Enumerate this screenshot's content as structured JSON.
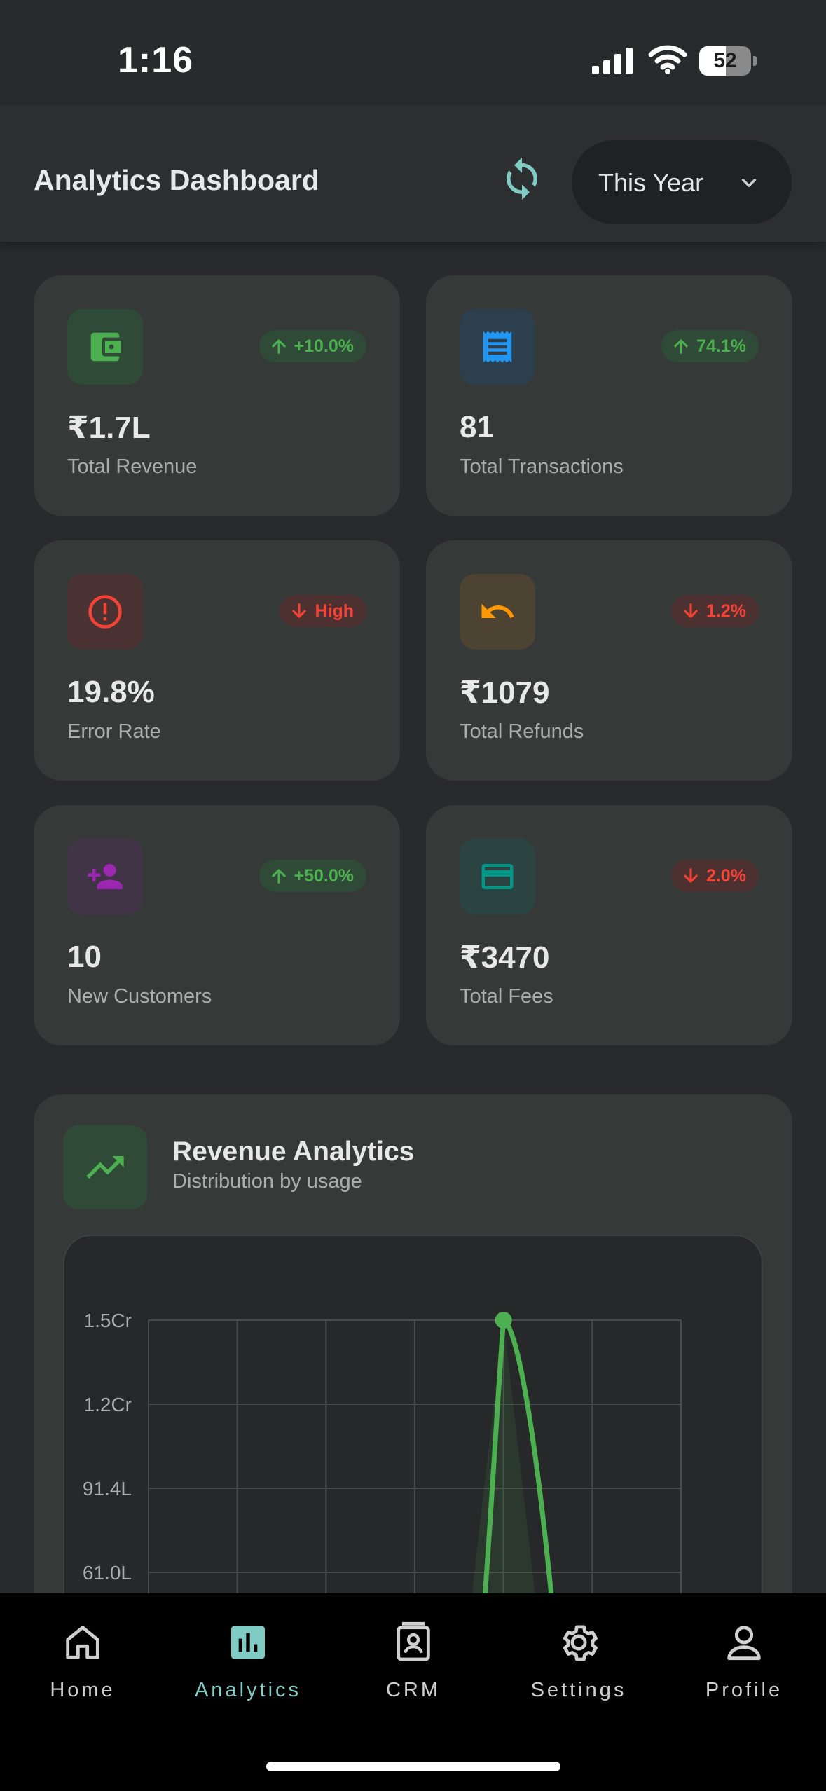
{
  "status_bar": {
    "time": "1:16",
    "battery": "52",
    "battery_level": 0.52
  },
  "header": {
    "title": "Analytics Dashboard",
    "period": "This Year"
  },
  "stats": [
    {
      "value": "₹1.7L",
      "label": "Total Revenue",
      "badge": "+10.0%",
      "trend": "up",
      "icon": "wallet-icon",
      "color": "#4caf50"
    },
    {
      "value": "81",
      "label": "Total Transactions",
      "badge": "74.1%",
      "trend": "up",
      "icon": "receipt-icon",
      "color": "#2196f3"
    },
    {
      "value": "19.8%",
      "label": "Error Rate",
      "badge": "High",
      "trend": "down",
      "icon": "error-icon",
      "color": "#f44336"
    },
    {
      "value": "₹1079",
      "label": "Total Refunds",
      "badge": "1.2%",
      "trend": "down",
      "icon": "undo-icon",
      "color": "#ff9800"
    },
    {
      "value": "10",
      "label": "New Customers",
      "badge": "+50.0%",
      "trend": "up",
      "icon": "person-add-icon",
      "color": "#9c27b0"
    },
    {
      "value": "₹3470",
      "label": "Total Fees",
      "badge": "2.0%",
      "trend": "down",
      "icon": "credit-card-icon",
      "color": "#009688"
    }
  ],
  "revenue": {
    "title": "Revenue Analytics",
    "subtitle": "Distribution by usage",
    "icon": "trending-up-icon"
  },
  "chart_data": {
    "type": "area",
    "title": "",
    "xlabel": "",
    "ylabel": "",
    "y_ticks": [
      "1.5Cr",
      "1.2Cr",
      "91.4L",
      "61.0L"
    ],
    "ylim": [
      0,
      15200000
    ],
    "x_count": 7,
    "grid": true,
    "series": [
      {
        "values": [
          0,
          0,
          0,
          0,
          15200000,
          0,
          0
        ],
        "color": "#4caf50"
      }
    ]
  },
  "nav": [
    {
      "label": "Home",
      "icon": "home-icon",
      "active": false
    },
    {
      "label": "Analytics",
      "icon": "analytics-icon",
      "active": true
    },
    {
      "label": "CRM",
      "icon": "contact-card-icon",
      "active": false
    },
    {
      "label": "Settings",
      "icon": "gear-icon",
      "active": false
    },
    {
      "label": "Profile",
      "icon": "person-icon",
      "active": false
    }
  ]
}
